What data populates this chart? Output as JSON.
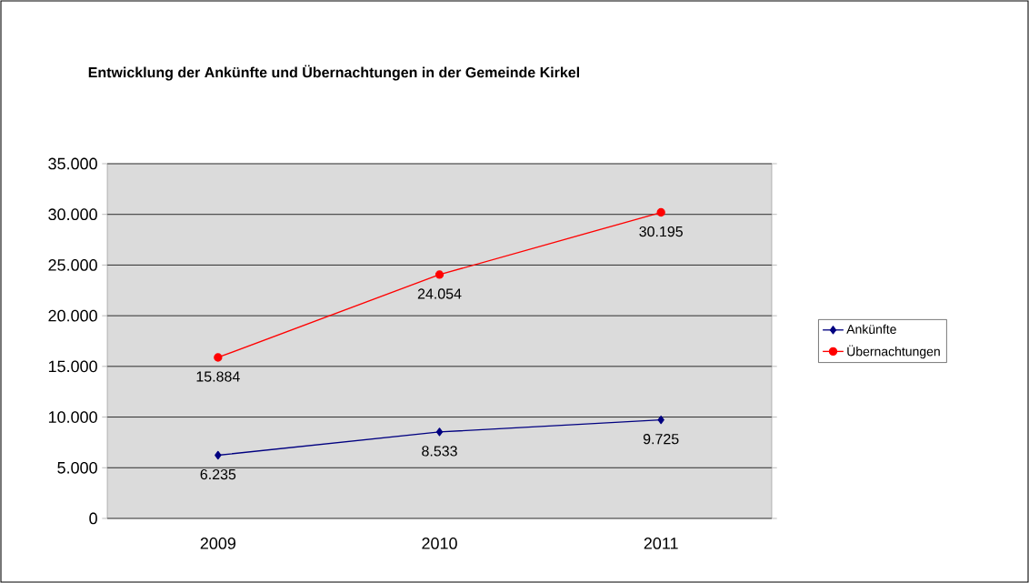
{
  "chart_data": {
    "type": "line",
    "title": "Entwicklung der Ankünfte und Übernachtungen in der Gemeinde Kirkel",
    "categories": [
      "2009",
      "2010",
      "2011"
    ],
    "series": [
      {
        "name": "Ankünfte",
        "color": "#000080",
        "marker": "diamond",
        "values": [
          6235,
          8533,
          9725
        ],
        "value_labels": [
          "6.235",
          "8.533",
          "9.725"
        ]
      },
      {
        "name": "Übernachtungen",
        "color": "#ff0000",
        "marker": "circle",
        "values": [
          15884,
          24054,
          30195
        ],
        "value_labels": [
          "15.884",
          "24.054",
          "30.195"
        ]
      }
    ],
    "ylim": [
      0,
      35000
    ],
    "yticks": [
      {
        "value": 0,
        "label": "0"
      },
      {
        "value": 5000,
        "label": "5.000"
      },
      {
        "value": 10000,
        "label": "10.000"
      },
      {
        "value": 15000,
        "label": "15.000"
      },
      {
        "value": 20000,
        "label": "20.000"
      },
      {
        "value": 25000,
        "label": "25.000"
      },
      {
        "value": 30000,
        "label": "30.000"
      },
      {
        "value": 35000,
        "label": "35.000"
      }
    ],
    "grid": "y",
    "legend": "right",
    "line_style": "solid"
  }
}
